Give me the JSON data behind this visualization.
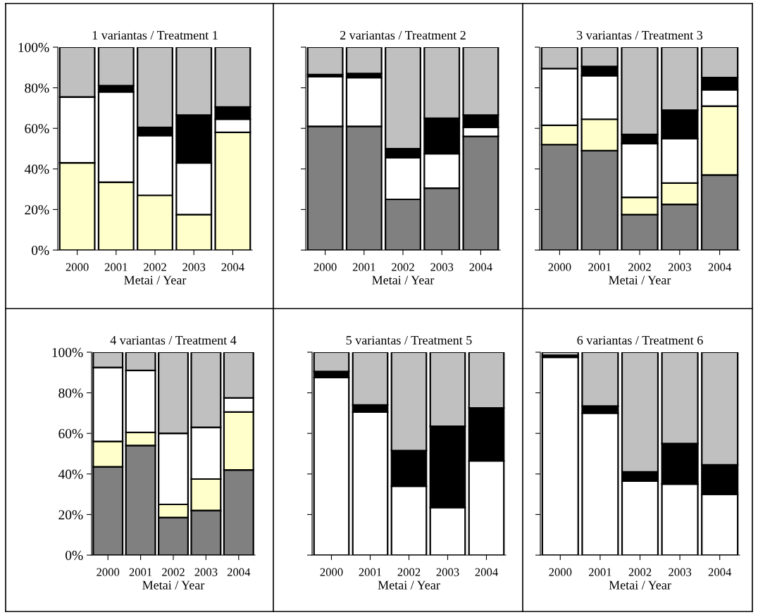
{
  "chart_data": [
    {
      "type": "bar",
      "stacked": true,
      "title": "1 variantas / Treatment 1",
      "xlabel": "Metai / Year",
      "categories": [
        "2000",
        "2001",
        "2002",
        "2003",
        "2004"
      ],
      "ylim": [
        0,
        100
      ],
      "yticks": [
        {
          "value": 0,
          "label": "0%"
        },
        {
          "value": 20,
          "label": "20%"
        },
        {
          "value": 40,
          "label": "40%"
        },
        {
          "value": 60,
          "label": "60%"
        },
        {
          "value": 80,
          "label": "80%"
        },
        {
          "value": 100,
          "label": "100%"
        }
      ],
      "grid": false,
      "series": [
        {
          "color": "#ffffcc",
          "values": [
            43,
            33.5,
            27,
            17.5,
            58
          ]
        },
        {
          "color": "#ffffff",
          "values": [
            32.5,
            44.5,
            29.5,
            25.5,
            6.5
          ]
        },
        {
          "color": "#000000",
          "values": [
            0,
            3,
            4,
            23.5,
            6
          ]
        },
        {
          "color": "#c0c0c0",
          "values": [
            24.5,
            19,
            39.5,
            33.5,
            29.5
          ]
        }
      ]
    },
    {
      "type": "bar",
      "stacked": true,
      "title": "2 variantas / Treatment 2",
      "xlabel": "Metai / Year",
      "categories": [
        "2000",
        "2001",
        "2002",
        "2003",
        "2004"
      ],
      "ylim": [
        0,
        100
      ],
      "yticks": [
        0,
        20,
        40,
        60,
        80,
        100
      ],
      "tick_labels": "x",
      "grid": false,
      "series": [
        {
          "color": "#808080",
          "values": [
            61,
            61,
            25,
            30.5,
            56
          ]
        },
        {
          "color": "#ffffff",
          "values": [
            24.5,
            24,
            20.5,
            17,
            4.5
          ]
        },
        {
          "color": "#000000",
          "values": [
            1,
            2,
            4.5,
            17.5,
            6
          ]
        },
        {
          "color": "#c0c0c0",
          "values": [
            13.5,
            13,
            50,
            35,
            33.5
          ]
        }
      ]
    },
    {
      "type": "bar",
      "stacked": true,
      "title": "3 variantas / Treatment 3",
      "xlabel": "Metai / Year",
      "categories": [
        "2000",
        "2001",
        "2002",
        "2003",
        "2004"
      ],
      "ylim": [
        0,
        100
      ],
      "yticks": [
        0,
        20,
        40,
        60,
        80,
        100
      ],
      "tick_labels": "x",
      "grid": false,
      "series": [
        {
          "color": "#808080",
          "values": [
            52,
            49,
            17.5,
            22.5,
            37
          ]
        },
        {
          "color": "#ffffcc",
          "values": [
            9.5,
            15.5,
            8.5,
            10.5,
            34
          ]
        },
        {
          "color": "#ffffff",
          "values": [
            28,
            21.5,
            26.5,
            22,
            8
          ]
        },
        {
          "color": "#000000",
          "values": [
            0,
            4.5,
            4.5,
            14,
            6
          ]
        },
        {
          "color": "#c0c0c0",
          "values": [
            10.5,
            9.5,
            43,
            31,
            15
          ]
        }
      ]
    },
    {
      "type": "bar",
      "stacked": true,
      "title": "4 variantas / Treatment 4",
      "xlabel": "Metai / Year",
      "categories": [
        "2000",
        "2001",
        "2002",
        "2003",
        "2004"
      ],
      "ylim": [
        0,
        100
      ],
      "yticks": [
        {
          "value": 0,
          "label": "0%"
        },
        {
          "value": 20,
          "label": "20%"
        },
        {
          "value": 40,
          "label": "40%"
        },
        {
          "value": 60,
          "label": "60%"
        },
        {
          "value": 80,
          "label": "80%"
        },
        {
          "value": 100,
          "label": "100%"
        }
      ],
      "grid": false,
      "series": [
        {
          "color": "#808080",
          "values": [
            43.5,
            54,
            18.5,
            22,
            42
          ]
        },
        {
          "color": "#ffffcc",
          "values": [
            12.5,
            6.5,
            6.5,
            15.5,
            28.5
          ]
        },
        {
          "color": "#ffffff",
          "values": [
            36.5,
            30.5,
            35,
            25.5,
            7
          ]
        },
        {
          "color": "#c0c0c0",
          "values": [
            7.5,
            9,
            40,
            37,
            22.5
          ]
        }
      ]
    },
    {
      "type": "bar",
      "stacked": true,
      "title": "5 variantas / Treatment 5",
      "xlabel": "Metai / Year",
      "categories": [
        "2000",
        "2001",
        "2002",
        "2003",
        "2004"
      ],
      "ylim": [
        0,
        100
      ],
      "yticks": [
        0,
        20,
        40,
        60,
        80,
        100
      ],
      "tick_labels": "x",
      "grid": false,
      "series": [
        {
          "color": "#ffffff",
          "values": [
            87.5,
            70.5,
            34,
            23.5,
            46.5
          ]
        },
        {
          "color": "#000000",
          "values": [
            3,
            3.5,
            17.5,
            40,
            26
          ]
        },
        {
          "color": "#c0c0c0",
          "values": [
            9.5,
            26,
            48.5,
            36.5,
            27.5
          ]
        }
      ]
    },
    {
      "type": "bar",
      "stacked": true,
      "title": "6 variantas / Treatment 6",
      "xlabel": "Metai / Year",
      "categories": [
        "2000",
        "2001",
        "2002",
        "2003",
        "2004"
      ],
      "ylim": [
        0,
        100
      ],
      "yticks": [
        0,
        20,
        40,
        60,
        80,
        100
      ],
      "tick_labels": "x",
      "grid": false,
      "series": [
        {
          "color": "#ffffff",
          "values": [
            97.5,
            70,
            36.5,
            35,
            30
          ]
        },
        {
          "color": "#000000",
          "values": [
            1,
            3.5,
            4.5,
            20,
            14.5
          ]
        },
        {
          "color": "#c0c0c0",
          "values": [
            1.5,
            26.5,
            59,
            45,
            55.5
          ]
        }
      ]
    }
  ]
}
